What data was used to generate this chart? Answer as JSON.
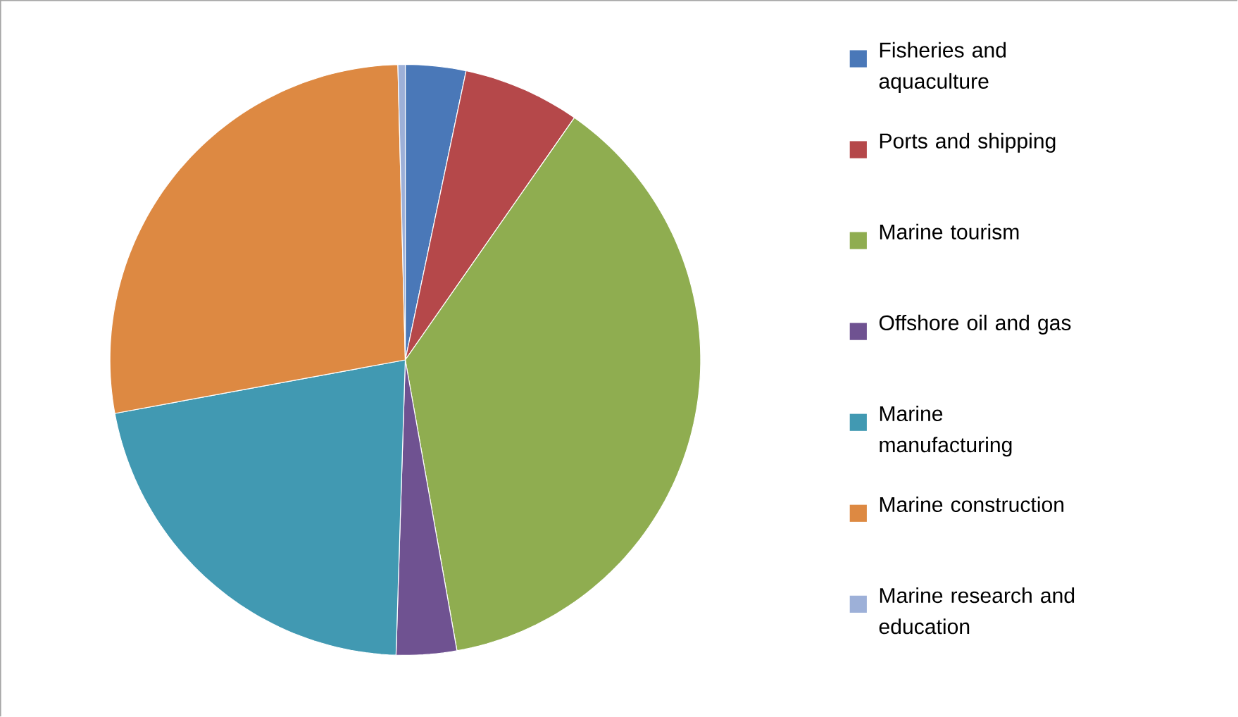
{
  "chart_data": {
    "type": "pie",
    "legend": "right",
    "categories": [
      "Fisheries and aquaculture",
      "Ports and shipping",
      "Marine tourism",
      "Offshore oil and gas",
      "Marine manufacturing",
      "Marine construction",
      "Marine research and education"
    ],
    "values": [
      3.3,
      6.4,
      37.5,
      3.3,
      21.6,
      27.5,
      0.4
    ],
    "colors": [
      "#4a78b8",
      "#b5484a",
      "#8fad50",
      "#6f5291",
      "#4199b2",
      "#dd8942",
      "#9db0d8"
    ]
  }
}
